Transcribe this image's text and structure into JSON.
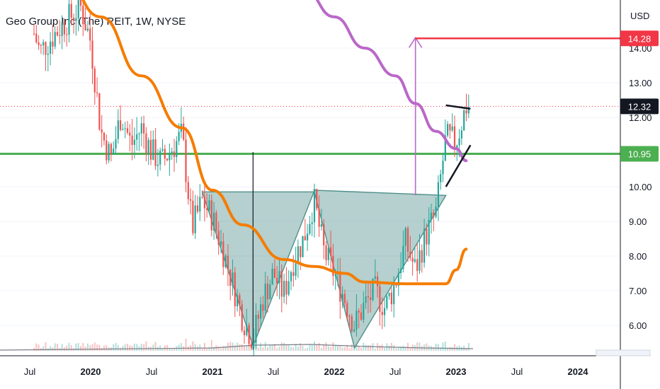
{
  "header": {
    "ticker": "Geo Group Inc (The) REIT, 1W, NYSE"
  },
  "colors": {
    "up": "#26a69a",
    "down": "#ef5350",
    "ema_fast": "#f57c00",
    "ema_slow": "#ba68c8",
    "support": "#4caf50",
    "target": "#f23645",
    "pattern": "#4f8f8a",
    "price_line": "#f23645"
  },
  "chart_data": {
    "type": "candlestick",
    "title": "Geo Group Inc (The) REIT, 1W, NYSE",
    "currency": "USD",
    "x_ticks": [
      "Jul",
      "2020",
      "Jul",
      "2021",
      "Jul",
      "2022",
      "Jul",
      "2023",
      "Jul",
      "2024"
    ],
    "y_ticks": [
      "6.00",
      "7.00",
      "8.00",
      "9.00",
      "10.00",
      "11.00",
      "12.00",
      "13.00",
      "14.00"
    ],
    "ylim": [
      5.1,
      15.1
    ],
    "price_tags": [
      {
        "label": "14.28",
        "value": 14.28,
        "color": "#f23645"
      },
      {
        "label": "12.32",
        "value": 12.32,
        "color": "#131722"
      },
      {
        "label": "10.95",
        "value": 10.95,
        "color": "#4caf50"
      }
    ],
    "horizontal_levels": [
      {
        "value": 10.95,
        "color": "#4caf50"
      },
      {
        "value": 14.28,
        "color": "#f23645"
      }
    ],
    "close_price": 12.32,
    "ohlc_anchor_points": [
      {
        "date": "2019-05",
        "price": 15.6
      },
      {
        "date": "2019-07",
        "price": 14.8
      },
      {
        "date": "2019-08",
        "price": 13.9
      },
      {
        "date": "2019-10",
        "price": 14.6
      },
      {
        "date": "2019-12",
        "price": 15.2
      },
      {
        "date": "2020-01",
        "price": 14.2
      },
      {
        "date": "2020-02",
        "price": 11.6
      },
      {
        "date": "2020-03",
        "price": 10.8
      },
      {
        "date": "2020-04",
        "price": 12.1
      },
      {
        "date": "2020-05",
        "price": 11.2
      },
      {
        "date": "2020-06",
        "price": 11.7
      },
      {
        "date": "2020-07",
        "price": 11.0
      },
      {
        "date": "2020-08",
        "price": 10.7
      },
      {
        "date": "2020-09",
        "price": 11.1
      },
      {
        "date": "2020-10",
        "price": 11.5
      },
      {
        "date": "2020-11",
        "price": 8.8
      },
      {
        "date": "2020-12",
        "price": 9.6
      },
      {
        "date": "2021-01",
        "price": 9.1
      },
      {
        "date": "2021-02",
        "price": 8.2
      },
      {
        "date": "2021-03",
        "price": 7.2
      },
      {
        "date": "2021-04",
        "price": 6.2
      },
      {
        "date": "2021-05",
        "price": 5.6
      },
      {
        "date": "2021-06",
        "price": 6.8
      },
      {
        "date": "2021-07",
        "price": 7.5
      },
      {
        "date": "2021-08",
        "price": 6.9
      },
      {
        "date": "2021-09",
        "price": 7.9
      },
      {
        "date": "2021-10",
        "price": 8.5
      },
      {
        "date": "2021-11",
        "price": 9.6
      },
      {
        "date": "2021-12",
        "price": 8.1
      },
      {
        "date": "2022-01",
        "price": 7.5
      },
      {
        "date": "2022-02",
        "price": 6.8
      },
      {
        "date": "2022-03",
        "price": 6.0
      },
      {
        "date": "2022-04",
        "price": 6.6
      },
      {
        "date": "2022-05",
        "price": 7.0
      },
      {
        "date": "2022-06",
        "price": 6.5
      },
      {
        "date": "2022-07",
        "price": 7.2
      },
      {
        "date": "2022-08",
        "price": 8.4
      },
      {
        "date": "2022-09",
        "price": 7.6
      },
      {
        "date": "2022-10",
        "price": 8.6
      },
      {
        "date": "2022-11",
        "price": 9.2
      },
      {
        "date": "2022-12",
        "price": 11.4
      },
      {
        "date": "2023-01",
        "price": 11.3
      },
      {
        "date": "2023-02",
        "price": 12.32
      }
    ],
    "ema_fast_points": [
      {
        "date": "2019-10",
        "price": 16.2
      },
      {
        "date": "2020-02",
        "price": 14.9
      },
      {
        "date": "2020-06",
        "price": 13.2
      },
      {
        "date": "2020-10",
        "price": 11.7
      },
      {
        "date": "2021-01",
        "price": 9.9
      },
      {
        "date": "2021-04",
        "price": 8.9
      },
      {
        "date": "2021-08",
        "price": 7.9
      },
      {
        "date": "2021-11",
        "price": 7.7
      },
      {
        "date": "2022-02",
        "price": 7.5
      },
      {
        "date": "2022-04",
        "price": 7.25
      },
      {
        "date": "2022-08",
        "price": 7.2
      },
      {
        "date": "2022-12",
        "price": 7.2
      },
      {
        "date": "2023-01",
        "price": 7.6
      },
      {
        "date": "2023-02",
        "price": 8.2
      }
    ],
    "ema_slow_points": [
      {
        "date": "2021-06",
        "price": 16.4
      },
      {
        "date": "2021-10",
        "price": 15.7
      },
      {
        "date": "2022-01",
        "price": 14.9
      },
      {
        "date": "2022-04",
        "price": 14.0
      },
      {
        "date": "2022-07",
        "price": 13.2
      },
      {
        "date": "2022-09",
        "price": 12.4
      },
      {
        "date": "2022-11",
        "price": 11.6
      },
      {
        "date": "2023-01",
        "price": 11.1
      },
      {
        "date": "2023-02",
        "price": 10.75
      }
    ],
    "annotations": {
      "left_triangle": [
        {
          "date": "2020-12",
          "price": 9.85
        },
        {
          "date": "2021-11",
          "price": 9.85
        },
        {
          "date": "2021-05",
          "price": 5.4
        }
      ],
      "right_triangle": [
        {
          "date": "2021-11",
          "price": 9.9
        },
        {
          "date": "2022-12",
          "price": 9.75
        },
        {
          "date": "2022-03",
          "price": 5.35
        }
      ],
      "neckline_vertical": {
        "date": "2021-05",
        "from": 5.3,
        "to": 11.0
      },
      "target_arrow": {
        "date": "2022-09",
        "from": 9.75,
        "to": 14.3
      },
      "target_line": {
        "from_date": "2022-09",
        "price": 14.28
      },
      "flag_top": [
        {
          "date": "2022-12",
          "price": 12.35
        },
        {
          "date": "2023-02",
          "price": 12.25
        }
      ],
      "flag_bottom": [
        {
          "date": "2022-12",
          "price": 10.0
        },
        {
          "date": "2023-02",
          "price": 11.2
        }
      ]
    }
  }
}
